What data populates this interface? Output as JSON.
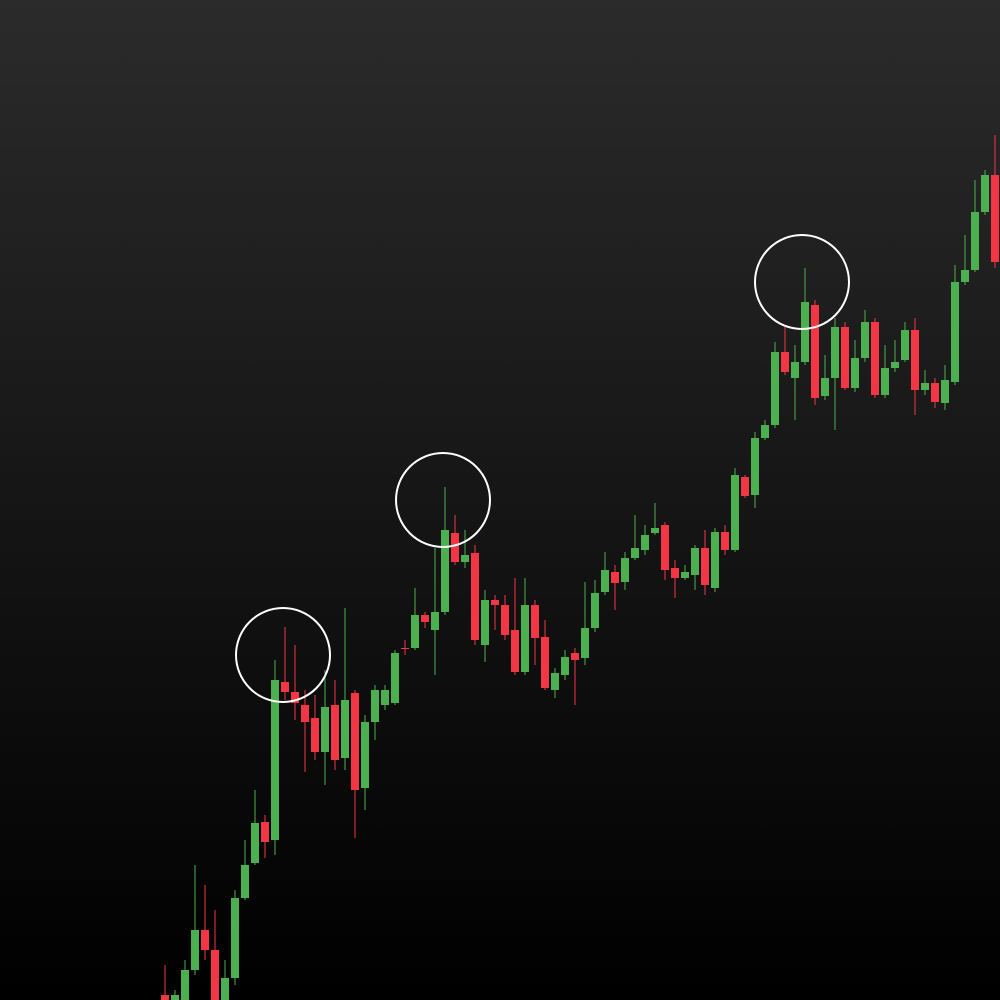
{
  "chart_data": {
    "type": "candlestick",
    "up_color": "#4caf50",
    "down_color": "#f23645",
    "ylim": [
      0,
      1000
    ],
    "open": [
      5,
      0,
      0,
      30,
      70,
      50,
      0,
      22,
      102,
      137,
      178,
      160,
      318,
      308,
      295,
      282,
      248,
      295,
      242,
      307,
      212,
      278,
      295,
      297,
      352,
      352,
      385,
      370,
      388,
      467,
      438,
      447,
      355,
      400,
      395,
      370,
      328,
      395,
      363,
      310,
      325,
      347,
      342,
      372,
      408,
      428,
      418,
      442,
      450,
      467,
      475,
      432,
      422,
      425,
      452,
      412,
      468,
      450,
      523,
      505,
      562,
      575,
      648,
      622,
      638,
      695,
      604,
      622,
      673,
      612,
      642,
      678,
      605,
      632,
      640,
      670,
      610,
      617,
      597,
      618,
      718,
      730,
      788,
      825
    ],
    "high": [
      35,
      10,
      40,
      135,
      115,
      90,
      40,
      110,
      160,
      210,
      185,
      340,
      373,
      355,
      310,
      305,
      330,
      320,
      392,
      310,
      285,
      315,
      315,
      350,
      360,
      412,
      388,
      452,
      513,
      485,
      470,
      455,
      410,
      405,
      405,
      422,
      422,
      400,
      380,
      332,
      350,
      352,
      418,
      420,
      448,
      435,
      448,
      485,
      475,
      497,
      478,
      440,
      435,
      455,
      470,
      472,
      475,
      532,
      525,
      568,
      580,
      658,
      675,
      655,
      732,
      700,
      645,
      682,
      678,
      660,
      690,
      682,
      655,
      660,
      678,
      682,
      630,
      622,
      635,
      735,
      765,
      820,
      830,
      865
    ],
    "low": [
      0,
      0,
      0,
      25,
      40,
      0,
      0,
      15,
      100,
      135,
      142,
      145,
      300,
      280,
      228,
      240,
      215,
      230,
      230,
      162,
      190,
      260,
      290,
      295,
      345,
      350,
      372,
      325,
      385,
      435,
      432,
      355,
      338,
      370,
      360,
      325,
      325,
      335,
      310,
      302,
      320,
      295,
      335,
      368,
      405,
      390,
      410,
      440,
      445,
      465,
      420,
      402,
      420,
      410,
      405,
      408,
      445,
      448,
      502,
      492,
      560,
      572,
      625,
      580,
      635,
      595,
      600,
      570,
      610,
      608,
      638,
      602,
      602,
      628,
      638,
      585,
      605,
      592,
      590,
      615,
      715,
      728,
      785,
      732
    ],
    "close": [
      0,
      5,
      30,
      70,
      50,
      0,
      22,
      102,
      135,
      177,
      158,
      320,
      308,
      297,
      278,
      248,
      293,
      240,
      300,
      210,
      278,
      310,
      310,
      347,
      351,
      385,
      378,
      388,
      470,
      438,
      445,
      360,
      400,
      395,
      365,
      328,
      395,
      362,
      312,
      327,
      343,
      340,
      372,
      407,
      430,
      417,
      442,
      452,
      465,
      472,
      430,
      422,
      428,
      452,
      415,
      468,
      450,
      525,
      504,
      562,
      575,
      648,
      628,
      638,
      698,
      602,
      622,
      673,
      612,
      642,
      678,
      605,
      632,
      638,
      670,
      610,
      617,
      598,
      620,
      718,
      730,
      788,
      825,
      738
    ]
  }
}
